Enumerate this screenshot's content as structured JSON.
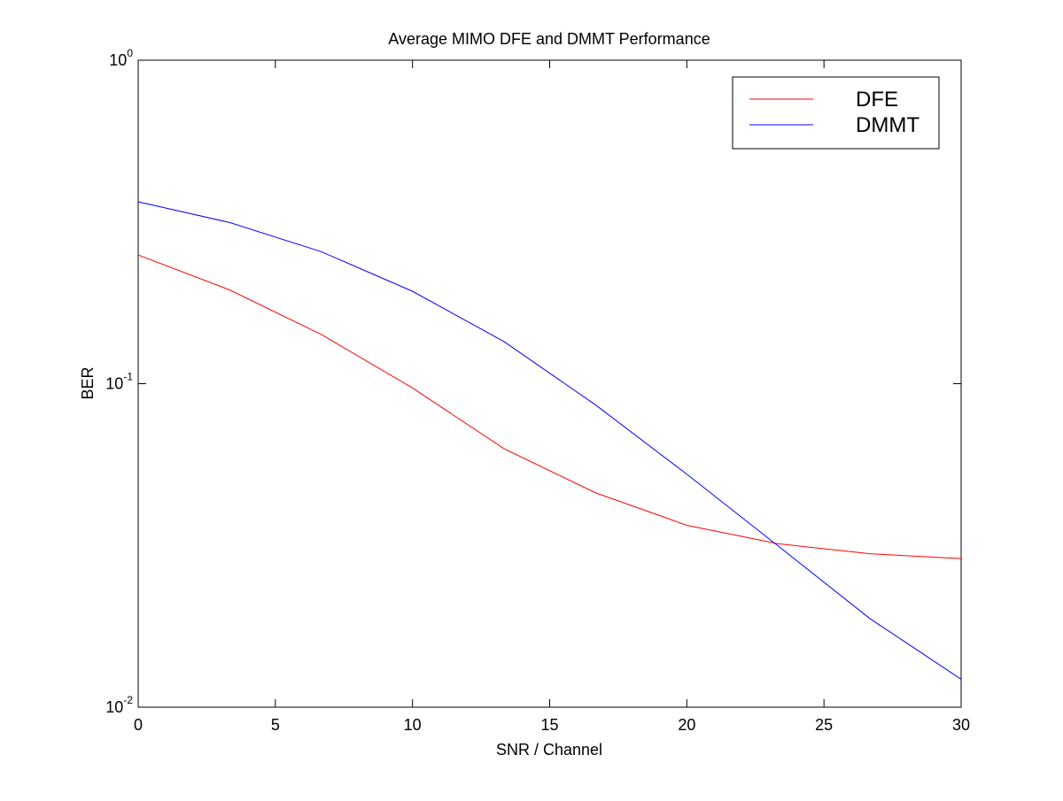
{
  "chart_data": {
    "type": "line",
    "title": "Average MIMO DFE and DMMT Performance",
    "xlabel": "SNR / Channel",
    "ylabel": "BER",
    "x_scale": "linear",
    "y_scale": "log",
    "xlim": [
      0,
      30
    ],
    "ylim": [
      0.01,
      1
    ],
    "grid": false,
    "legend_position": "top-right",
    "x_ticks": [
      0,
      5,
      10,
      15,
      20,
      25,
      30
    ],
    "x_tick_labels": [
      "0",
      "5",
      "10",
      "15",
      "20",
      "25",
      "30"
    ],
    "y_ticks": [
      {
        "value": 1,
        "base": "10",
        "exponent": "0"
      },
      {
        "value": 0.1,
        "base": "10",
        "exponent": "-1"
      },
      {
        "value": 0.01,
        "base": "10",
        "exponent": "-2"
      }
    ],
    "x": [
      0,
      3.33,
      6.67,
      10,
      13.33,
      16.67,
      20,
      23.33,
      26.67,
      30
    ],
    "series": [
      {
        "name": "DFE",
        "color": "#ff0000",
        "values": [
          0.25,
          0.195,
          0.142,
          0.097,
          0.063,
          0.046,
          0.0365,
          0.032,
          0.0298,
          0.0288
        ]
      },
      {
        "name": "DMMT",
        "color": "#0000ff",
        "values": [
          0.365,
          0.315,
          0.256,
          0.193,
          0.135,
          0.086,
          0.0525,
          0.0315,
          0.0188,
          0.0122
        ]
      }
    ]
  }
}
